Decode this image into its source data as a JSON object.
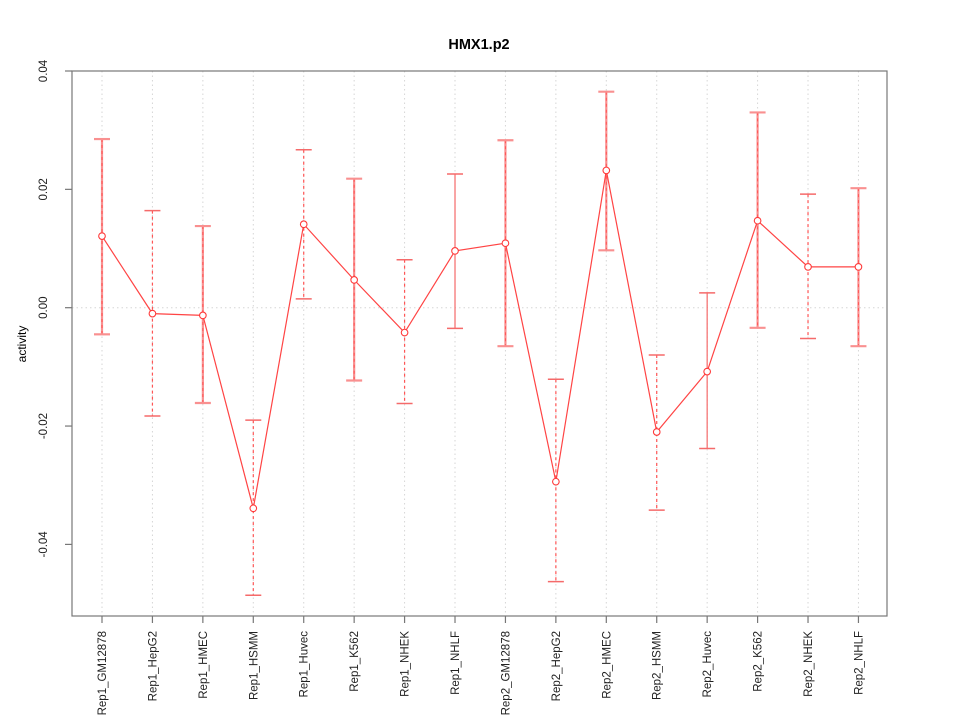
{
  "chart_data": {
    "type": "scatter",
    "title": "HMX1.p2",
    "xlabel": "",
    "ylabel": "activity",
    "categories": [
      "Rep1_GM12878",
      "Rep1_HepG2",
      "Rep1_HMEC",
      "Rep1_HSMM",
      "Rep1_Huvec",
      "Rep1_K562",
      "Rep1_NHEK",
      "Rep1_NHLF",
      "Rep2_GM12878",
      "Rep2_HepG2",
      "Rep2_HMEC",
      "Rep2_HSMM",
      "Rep2_Huvec",
      "Rep2_K562",
      "Rep2_NHEK",
      "Rep2_NHLF"
    ],
    "series": [
      {
        "name": "activity",
        "values": [
          0.0121,
          -0.001,
          -0.0013,
          -0.0339,
          0.0141,
          0.0047,
          -0.0042,
          0.0096,
          0.0109,
          -0.0294,
          0.0232,
          -0.021,
          -0.0108,
          0.0147,
          0.0069,
          0.0069
        ],
        "lower": [
          -0.0045,
          -0.0183,
          -0.0161,
          -0.0486,
          0.0015,
          -0.0123,
          -0.0162,
          -0.0035,
          -0.0065,
          -0.0463,
          0.0097,
          -0.0342,
          -0.0238,
          -0.0034,
          -0.0052,
          -0.0065
        ],
        "upper": [
          0.0285,
          0.0164,
          0.0138,
          -0.019,
          0.0267,
          0.0218,
          0.0081,
          0.0226,
          0.0283,
          -0.0121,
          0.0365,
          -0.008,
          0.0025,
          0.033,
          0.0192,
          0.0202
        ],
        "error_bar_styles": [
          "thick",
          "dashed",
          "thick",
          "dashed",
          "dashed",
          "thick",
          "dashed",
          "thin",
          "thick",
          "dashed",
          "thick",
          "dashed",
          "thin",
          "thick",
          "dashed",
          "thick"
        ]
      }
    ],
    "yticks": {
      "values": [
        0.04,
        0.02,
        0.0,
        -0.02,
        -0.04
      ],
      "labels": [
        "0.04",
        "0.02",
        "0.00",
        "-0.02",
        "-0.04"
      ]
    },
    "ylim": [
      -0.0521,
      0.04
    ],
    "grid": {
      "vertical_dotted_per_category": true,
      "horizontal_dotted_at_zero": true
    },
    "legend": "none"
  },
  "colors": {
    "series_line": "#ff4444",
    "point_stroke": "#ff3a3a",
    "point_fill": "#ffffff",
    "errorbar_thick": "#f99090",
    "errorbar_thin": "#f56a6a",
    "errorbar_dash": "#ff5555",
    "grid": "#d6d6d6",
    "axis": "#777777",
    "tick_text": "#222222",
    "title_text": "#111111"
  }
}
